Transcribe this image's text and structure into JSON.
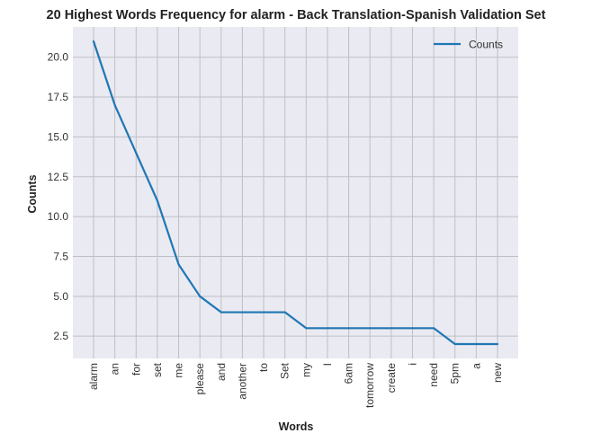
{
  "chart_data": {
    "type": "line",
    "title": "20 Highest Words Frequency for alarm - Back Translation-Spanish Validation Set",
    "xlabel": "Words",
    "ylabel": "Counts",
    "categories": [
      "alarm",
      "an",
      "for",
      "set",
      "me",
      "please",
      "and",
      "another",
      "to",
      "Set",
      "my",
      "I",
      "6am",
      "tomorrow",
      "create",
      "i",
      "need",
      "5pm",
      "a",
      "new"
    ],
    "series": [
      {
        "name": "Counts",
        "values": [
          21,
          17,
          14,
          11,
          7,
          5,
          4,
          4,
          4,
          4,
          3,
          3,
          3,
          3,
          3,
          3,
          3,
          2,
          2,
          2
        ]
      }
    ],
    "ylim": [
      1.1,
      21.9
    ],
    "yticks": [
      2.5,
      5.0,
      7.5,
      10.0,
      12.5,
      15.0,
      17.5,
      20.0
    ],
    "ytick_labels": [
      "2.5",
      "5.0",
      "7.5",
      "10.0",
      "12.5",
      "15.0",
      "17.5",
      "20.0"
    ],
    "grid": true,
    "legend": "top-right",
    "colors": {
      "line": "#1f77b4",
      "plot_background": "#eaeaf2",
      "grid": "#bfbfc4"
    }
  }
}
